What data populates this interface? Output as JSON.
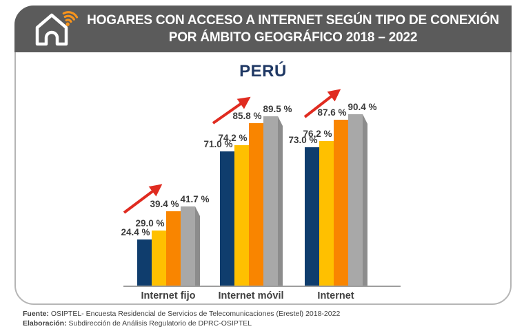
{
  "header": {
    "title_line1": "HOGARES CON ACCESO A INTERNET SEGÚN TIPO DE CONEXIÓN",
    "title_line2": "POR ÁMBITO GEOGRÁFICO 2018 – 2022",
    "background": "#5b5b5b",
    "icon": "house-wifi-icon",
    "icon_color": "#ffffff",
    "wifi_color": "#f7941d"
  },
  "chart_data": {
    "type": "bar",
    "title": "PERÚ",
    "title_color": "#1f3864",
    "categories": [
      "Internet fijo",
      "Internet móvil",
      "Internet"
    ],
    "series": [
      {
        "name": "navy",
        "color": "#0f3d6d",
        "values": [
          24.4,
          71.0,
          73.0
        ]
      },
      {
        "name": "yellow",
        "color": "#ffc000",
        "values": [
          29.0,
          74.2,
          76.2
        ]
      },
      {
        "name": "orange",
        "color": "#f98500",
        "values": [
          39.4,
          85.8,
          87.6
        ]
      },
      {
        "name": "gray",
        "color": "#a8a8a8",
        "side_color": "#8c8c8c",
        "values": [
          41.7,
          89.5,
          90.4
        ]
      }
    ],
    "value_suffix": " %",
    "ylim": [
      0,
      100
    ],
    "grid": false,
    "legend": "none",
    "value_label_color": "#3b3b3b",
    "category_label_color": "#404040",
    "axis_color": "#9e9e9e",
    "trend_arrow_color": "#e02b20"
  },
  "footer": {
    "source_label": "Fuente:",
    "source_text": " OSIPTEL- Encuesta Residencial de Servicios de Telecomunicaciones (Erestel) 2018-2022",
    "elaboration_label": "Elaboración:",
    "elaboration_text": " Subdirección de Análisis Regulatorio de DPRC-OSIPTEL"
  }
}
